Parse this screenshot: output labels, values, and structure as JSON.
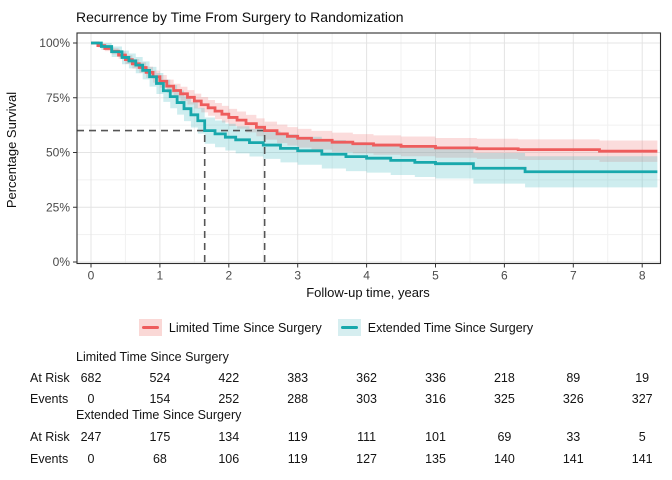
{
  "title": "Recurrence by Time From Surgery to Randomization",
  "chart_data": {
    "type": "km_step",
    "title": "Recurrence by Time From Surgery to Randomization",
    "xlabel": "Follow-up time, years",
    "ylabel": "Percentage Survival",
    "x_ticks": [
      0,
      1,
      2,
      3,
      4,
      5,
      6,
      7,
      8
    ],
    "y_ticks": [
      {
        "v": 0.0,
        "label": "0%"
      },
      {
        "v": 0.25,
        "label": "25%"
      },
      {
        "v": 0.5,
        "label": "50%"
      },
      {
        "v": 0.75,
        "label": "75%"
      },
      {
        "v": 1.0,
        "label": "100%"
      }
    ],
    "xlim": [
      -0.2,
      8.27
    ],
    "ylim": [
      -0.01,
      1.05
    ],
    "x_end": 8.22,
    "grid": true,
    "legend_position": "bottom",
    "guides": {
      "y_value": 0.6,
      "x_values": [
        1.65,
        2.52
      ],
      "color": "#555555"
    },
    "colors": {
      "grid_major": "#e4e4e4",
      "grid_minor": "#f1f1f1",
      "panel_border": "#2e2e2e",
      "tick": "#333333",
      "tick_label": "#4a4a4a"
    },
    "series": [
      {
        "name": "Limited Time Since Surgery",
        "color": "#EE5C5C",
        "fill": "#F07C7C",
        "fill_opacity": 0.27,
        "swatch_bg": "#FAD8D6",
        "points": [
          [
            0.0,
            1.0,
            1.0,
            1.0
          ],
          [
            0.1,
            0.988,
            0.98,
            0.996
          ],
          [
            0.2,
            0.975,
            0.963,
            0.987
          ],
          [
            0.3,
            0.962,
            0.948,
            0.976
          ],
          [
            0.4,
            0.945,
            0.928,
            0.962
          ],
          [
            0.5,
            0.924,
            0.904,
            0.944
          ],
          [
            0.6,
            0.905,
            0.883,
            0.927
          ],
          [
            0.7,
            0.888,
            0.864,
            0.912
          ],
          [
            0.8,
            0.866,
            0.84,
            0.892
          ],
          [
            0.9,
            0.846,
            0.819,
            0.873
          ],
          [
            1.0,
            0.825,
            0.796,
            0.854
          ],
          [
            1.1,
            0.803,
            0.773,
            0.833
          ],
          [
            1.2,
            0.783,
            0.752,
            0.814
          ],
          [
            1.3,
            0.768,
            0.736,
            0.8
          ],
          [
            1.4,
            0.752,
            0.719,
            0.785
          ],
          [
            1.5,
            0.735,
            0.701,
            0.769
          ],
          [
            1.6,
            0.718,
            0.683,
            0.753
          ],
          [
            1.7,
            0.704,
            0.668,
            0.74
          ],
          [
            1.8,
            0.689,
            0.652,
            0.726
          ],
          [
            1.9,
            0.675,
            0.637,
            0.713
          ],
          [
            2.0,
            0.66,
            0.621,
            0.699
          ],
          [
            2.12,
            0.648,
            0.609,
            0.687
          ],
          [
            2.25,
            0.632,
            0.592,
            0.672
          ],
          [
            2.4,
            0.615,
            0.574,
            0.656
          ],
          [
            2.52,
            0.6,
            0.559,
            0.641
          ],
          [
            2.7,
            0.585,
            0.543,
            0.627
          ],
          [
            2.85,
            0.574,
            0.532,
            0.616
          ],
          [
            3.0,
            0.565,
            0.522,
            0.608
          ],
          [
            3.2,
            0.556,
            0.513,
            0.599
          ],
          [
            3.5,
            0.547,
            0.503,
            0.591
          ],
          [
            3.8,
            0.54,
            0.496,
            0.584
          ],
          [
            4.1,
            0.534,
            0.49,
            0.578
          ],
          [
            4.5,
            0.528,
            0.483,
            0.573
          ],
          [
            5.0,
            0.521,
            0.476,
            0.566
          ],
          [
            5.6,
            0.517,
            0.471,
            0.563
          ],
          [
            6.2,
            0.513,
            0.466,
            0.56
          ],
          [
            7.38,
            0.506,
            0.457,
            0.555
          ]
        ]
      },
      {
        "name": "Extended Time Since Surgery",
        "color": "#18A8AC",
        "fill": "#4FBFC4",
        "fill_opacity": 0.28,
        "swatch_bg": "#D6EEF0",
        "points": [
          [
            0.0,
            1.0,
            1.0,
            1.0
          ],
          [
            0.15,
            0.984,
            0.968,
            1.0
          ],
          [
            0.3,
            0.96,
            0.936,
            0.984
          ],
          [
            0.45,
            0.934,
            0.903,
            0.965
          ],
          [
            0.55,
            0.918,
            0.884,
            0.952
          ],
          [
            0.65,
            0.899,
            0.862,
            0.936
          ],
          [
            0.75,
            0.875,
            0.834,
            0.916
          ],
          [
            0.85,
            0.846,
            0.801,
            0.891
          ],
          [
            0.95,
            0.815,
            0.767,
            0.863
          ],
          [
            1.05,
            0.782,
            0.731,
            0.833
          ],
          [
            1.15,
            0.755,
            0.702,
            0.808
          ],
          [
            1.25,
            0.728,
            0.673,
            0.783
          ],
          [
            1.35,
            0.7,
            0.643,
            0.757
          ],
          [
            1.45,
            0.672,
            0.614,
            0.73
          ],
          [
            1.55,
            0.645,
            0.586,
            0.704
          ],
          [
            1.65,
            0.6,
            0.54,
            0.66
          ],
          [
            1.8,
            0.585,
            0.524,
            0.646
          ],
          [
            1.95,
            0.57,
            0.509,
            0.631
          ],
          [
            2.1,
            0.558,
            0.496,
            0.62
          ],
          [
            2.3,
            0.545,
            0.482,
            0.608
          ],
          [
            2.5,
            0.534,
            0.471,
            0.597
          ],
          [
            2.75,
            0.519,
            0.455,
            0.583
          ],
          [
            3.0,
            0.508,
            0.444,
            0.572
          ],
          [
            3.35,
            0.492,
            0.427,
            0.557
          ],
          [
            3.7,
            0.481,
            0.415,
            0.547
          ],
          [
            4.0,
            0.474,
            0.408,
            0.54
          ],
          [
            4.35,
            0.464,
            0.397,
            0.531
          ],
          [
            4.7,
            0.455,
            0.388,
            0.522
          ],
          [
            5.0,
            0.449,
            0.381,
            0.517
          ],
          [
            5.55,
            0.428,
            0.358,
            0.498
          ],
          [
            6.3,
            0.412,
            0.341,
            0.483
          ]
        ]
      }
    ]
  },
  "legend": {
    "items": [
      {
        "label": "Limited Time Since Surgery"
      },
      {
        "label": "Extended Time Since Surgery"
      }
    ]
  },
  "risk_table": {
    "times": [
      0,
      1,
      2,
      3,
      4,
      5,
      6,
      7,
      8
    ],
    "row_labels": [
      "At Risk",
      "Events"
    ],
    "groups": [
      {
        "name": "Limited Time Since Surgery",
        "at_risk": [
          682,
          524,
          422,
          383,
          362,
          336,
          218,
          89,
          19
        ],
        "events": [
          0,
          154,
          252,
          288,
          303,
          316,
          325,
          326,
          327
        ]
      },
      {
        "name": "Extended Time Since Surgery",
        "at_risk": [
          247,
          175,
          134,
          119,
          111,
          101,
          69,
          33,
          5
        ],
        "events": [
          0,
          68,
          106,
          119,
          127,
          135,
          140,
          141,
          141
        ]
      }
    ]
  }
}
